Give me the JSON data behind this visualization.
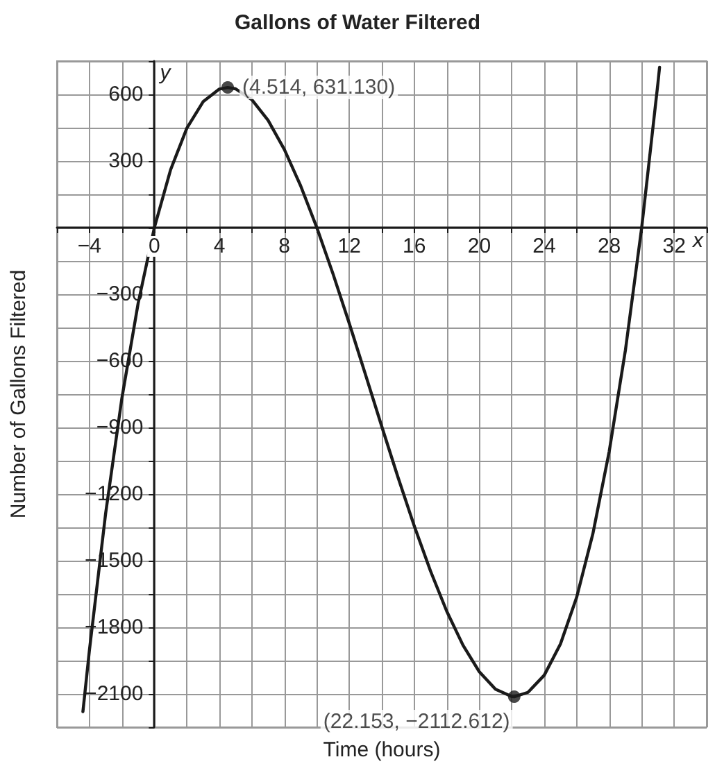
{
  "chart_data": {
    "type": "line",
    "title": "Gallons of Water Filtered",
    "xlabel": "Time (hours)",
    "ylabel": "Number of Gallons Filtered",
    "annotations": [
      "x",
      "y"
    ],
    "xlim": [
      -6,
      34
    ],
    "ylim": [
      -2250,
      750
    ],
    "xticks": [
      {
        "value": -6,
        "label": null
      },
      {
        "value": -4,
        "label": "−4"
      },
      {
        "value": -2,
        "label": null
      },
      0,
      {
        "value": 2,
        "label": null
      },
      4,
      {
        "value": 6,
        "label": null
      },
      8,
      {
        "value": 10,
        "label": null
      },
      12,
      {
        "value": 14,
        "label": null
      },
      16,
      {
        "value": 18,
        "label": null
      },
      20,
      {
        "value": 22,
        "label": null
      },
      24,
      {
        "value": 26,
        "label": null
      },
      28,
      {
        "value": 30,
        "label": null
      },
      32,
      {
        "value": 34,
        "label": null
      }
    ],
    "yticks": [
      {
        "value": -2250,
        "label": null
      },
      {
        "value": -2100,
        "label": "−2100"
      },
      {
        "value": -1950,
        "label": null
      },
      {
        "value": -1800,
        "label": "−1800"
      },
      {
        "value": -1650,
        "label": null
      },
      {
        "value": -1500,
        "label": "−1500"
      },
      {
        "value": -1350,
        "label": null
      },
      {
        "value": -1200,
        "label": "−1200"
      },
      {
        "value": -1050,
        "label": null
      },
      {
        "value": -900,
        "label": "−900"
      },
      {
        "value": -750,
        "label": null
      },
      {
        "value": -600,
        "label": "−600"
      },
      {
        "value": -450,
        "label": null
      },
      {
        "value": -300,
        "label": "−300"
      },
      {
        "value": -150,
        "label": null
      },
      {
        "value": 0,
        "label": null
      },
      {
        "value": 150,
        "label": null
      },
      300,
      {
        "value": 450,
        "label": null
      },
      600,
      {
        "value": 750,
        "label": null
      }
    ],
    "grid": true,
    "marker": "none",
    "line_style": "solid",
    "series": [
      {
        "color": "#1a1a1a",
        "x": [
          -4.4,
          -4,
          -3,
          -2,
          -1,
          0,
          1,
          2,
          3,
          4,
          4.514,
          5,
          6,
          7,
          8,
          9,
          10,
          11,
          12,
          13,
          14,
          15,
          16,
          17,
          18,
          19,
          20,
          21,
          22,
          22.153,
          23,
          24,
          25,
          26,
          27,
          28,
          29,
          30,
          31,
          31.1
        ],
        "values": [
          -2180,
          -1904,
          -1287,
          -768,
          -341,
          0,
          261,
          448,
          567,
          624,
          631,
          625,
          576,
          483,
          352,
          189,
          0,
          -209,
          -432,
          -663,
          -896,
          -1125,
          -1344,
          -1547,
          -1728,
          -1881,
          -2000,
          -2079,
          -2112,
          -2113,
          -2093,
          -2016,
          -1875,
          -1664,
          -1377,
          -1008,
          -551,
          0,
          651,
          722
        ]
      },
      {
        "type": "scatter",
        "color": "#1a1a1a",
        "marker": "circle",
        "x": [
          4.514,
          22.153
        ],
        "values": [
          631.13,
          -2112.612
        ],
        "value_labels": [
          "(4.514, 631.130)",
          "(22.153, −2112.612)"
        ]
      }
    ]
  }
}
